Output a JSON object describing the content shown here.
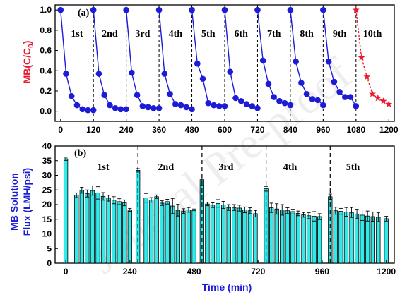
{
  "watermark": "Journal Pre-proof",
  "colors": {
    "blue": "#1c1cd6",
    "red": "#e8192c",
    "cyan": "#33eaea",
    "axis_text_blue": "#1c1cd6",
    "axis_text_red": "#e8192c"
  },
  "chart_data": [
    {
      "type": "line",
      "panel_label": "(a)",
      "ylabel": "MB(C/C0)",
      "ylabel_main": "MB(C/C",
      "ylabel_sub": "0",
      "ylabel_close": ")",
      "xlim": [
        -20,
        1220
      ],
      "ylim": [
        -0.1,
        1.05
      ],
      "xticks": [
        0,
        120,
        240,
        360,
        480,
        600,
        720,
        840,
        960,
        1080,
        1200
      ],
      "yticks": [
        0.0,
        0.2,
        0.4,
        0.6,
        0.8,
        1.0
      ],
      "ytick_labels": [
        "0.0",
        "0.2",
        "0.4",
        "0.6",
        "0.8",
        "1.0"
      ],
      "dividers": [
        120,
        240,
        360,
        480,
        600,
        720,
        840,
        960,
        1080
      ],
      "grid": false,
      "series": [
        {
          "label": "1st",
          "color": "#1c1cd6",
          "marker": "circle",
          "x": [
            0,
            20,
            40,
            60,
            80,
            100,
            120
          ],
          "y": [
            1.0,
            0.37,
            0.15,
            0.06,
            0.02,
            0.01,
            0.01
          ]
        },
        {
          "label": "2nd",
          "color": "#1c1cd6",
          "marker": "circle",
          "x": [
            120,
            140,
            160,
            180,
            200,
            220,
            240
          ],
          "y": [
            1.0,
            0.37,
            0.16,
            0.06,
            0.03,
            0.02,
            0.02
          ]
        },
        {
          "label": "3rd",
          "color": "#1c1cd6",
          "marker": "circle",
          "x": [
            240,
            260,
            280,
            300,
            320,
            340,
            360
          ],
          "y": [
            1.0,
            0.38,
            0.16,
            0.05,
            0.04,
            0.03,
            0.03
          ]
        },
        {
          "label": "4th",
          "color": "#1c1cd6",
          "marker": "circle",
          "x": [
            360,
            380,
            400,
            420,
            440,
            460,
            480
          ],
          "y": [
            1.0,
            0.37,
            0.17,
            0.07,
            0.06,
            0.04,
            0.02
          ]
        },
        {
          "label": "5th",
          "color": "#1c1cd6",
          "marker": "circle",
          "x": [
            480,
            500,
            520,
            540,
            560,
            580,
            600
          ],
          "y": [
            1.0,
            0.47,
            0.32,
            0.08,
            0.06,
            0.05,
            0.05
          ]
        },
        {
          "label": "6th",
          "color": "#1c1cd6",
          "marker": "circle",
          "x": [
            600,
            620,
            640,
            660,
            680,
            700,
            720
          ],
          "y": [
            1.0,
            0.39,
            0.13,
            0.1,
            0.07,
            0.05,
            0.03
          ]
        },
        {
          "label": "7th",
          "color": "#1c1cd6",
          "marker": "circle",
          "x": [
            720,
            740,
            760,
            780,
            800,
            820,
            840
          ],
          "y": [
            1.0,
            0.5,
            0.27,
            0.14,
            0.1,
            0.08,
            0.06
          ]
        },
        {
          "label": "8th",
          "color": "#1c1cd6",
          "marker": "circle",
          "x": [
            840,
            860,
            880,
            900,
            920,
            940,
            960
          ],
          "y": [
            1.0,
            0.49,
            0.28,
            0.17,
            0.12,
            0.11,
            0.06
          ]
        },
        {
          "label": "9th",
          "color": "#1c1cd6",
          "marker": "circle",
          "x": [
            960,
            980,
            1000,
            1020,
            1040,
            1060,
            1080
          ],
          "y": [
            1.0,
            0.49,
            0.29,
            0.19,
            0.14,
            0.14,
            0.05
          ]
        },
        {
          "label": "10th",
          "color": "#e8192c",
          "marker": "star",
          "dashed_line": true,
          "x": [
            1080,
            1100,
            1120,
            1140,
            1160,
            1180,
            1200
          ],
          "y": [
            1.0,
            0.53,
            0.34,
            0.17,
            0.13,
            0.1,
            0.07
          ]
        }
      ]
    },
    {
      "type": "bar",
      "panel_label": "(b)",
      "ylabel_line1": "MB Solution",
      "ylabel_line2": "Flux (LMH/psi)",
      "xlabel": "Time (min)",
      "xlim": [
        -40,
        1230
      ],
      "ylim": [
        0,
        40
      ],
      "xticks": [
        0,
        240,
        480,
        720,
        960,
        1200
      ],
      "yticks": [
        0,
        5,
        10,
        15,
        20,
        25,
        30,
        35,
        40
      ],
      "dividers": [
        270,
        510,
        750,
        990
      ],
      "cycle_labels": [
        {
          "text": "1st",
          "x": 140
        },
        {
          "text": "2nd",
          "x": 375
        },
        {
          "text": "3rd",
          "x": 600
        },
        {
          "text": "4th",
          "x": 840
        },
        {
          "text": "5th",
          "x": 1075
        }
      ],
      "grid": false,
      "x": [
        0,
        40,
        60,
        80,
        100,
        120,
        140,
        160,
        180,
        200,
        220,
        240,
        270,
        300,
        320,
        340,
        360,
        380,
        400,
        420,
        440,
        460,
        480,
        510,
        530,
        550,
        570,
        590,
        610,
        630,
        650,
        670,
        690,
        710,
        750,
        770,
        790,
        810,
        830,
        850,
        870,
        890,
        910,
        930,
        950,
        990,
        1010,
        1030,
        1050,
        1070,
        1090,
        1110,
        1130,
        1150,
        1170,
        1200
      ],
      "values": [
        35.5,
        23.2,
        24.9,
        23.8,
        24.8,
        24.0,
        22.8,
        22.2,
        21.5,
        21.0,
        20.6,
        18.2,
        31.7,
        22.3,
        21.6,
        22.7,
        20.5,
        21.0,
        19.5,
        18.1,
        17.8,
        18.2,
        18.0,
        28.5,
        20.2,
        19.8,
        20.4,
        19.9,
        19.0,
        19.0,
        18.8,
        18.2,
        17.9,
        16.9,
        25.4,
        18.9,
        18.5,
        18.2,
        17.9,
        17.6,
        17.0,
        16.5,
        16.2,
        16.0,
        15.9,
        22.7,
        17.9,
        17.7,
        17.5,
        17.3,
        16.8,
        16.4,
        16.1,
        15.9,
        15.7,
        15.2
      ],
      "errors": [
        0.4,
        0.8,
        1.0,
        1.2,
        1.6,
        2.1,
        1.3,
        1.0,
        1.2,
        1.0,
        1.0,
        0.5,
        0.6,
        1.5,
        0.8,
        0.6,
        0.8,
        0.8,
        2.6,
        2.0,
        0.8,
        0.8,
        0.5,
        2.0,
        0.6,
        0.8,
        1.3,
        1.2,
        1.0,
        1.0,
        1.0,
        1.0,
        1.0,
        1.1,
        0.8,
        1.6,
        1.8,
        1.8,
        1.0,
        0.8,
        0.8,
        0.8,
        1.0,
        1.6,
        1.0,
        0.9,
        1.2,
        1.0,
        1.5,
        1.7,
        1.6,
        1.8,
        1.7,
        1.6,
        1.5,
        0.8
      ]
    }
  ]
}
